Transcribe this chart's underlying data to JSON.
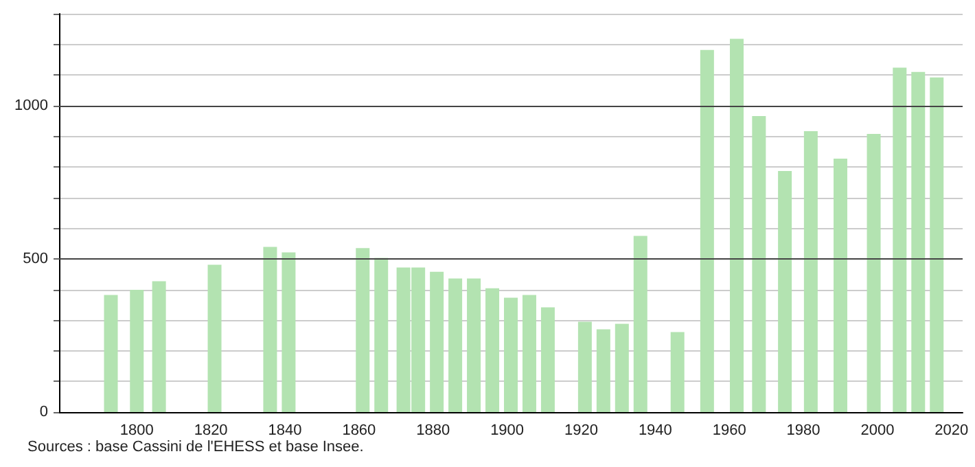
{
  "chart_data": {
    "type": "bar",
    "x": [
      1793,
      1800,
      1806,
      1821,
      1836,
      1841,
      1861,
      1866,
      1872,
      1876,
      1881,
      1886,
      1891,
      1896,
      1901,
      1906,
      1911,
      1921,
      1926,
      1931,
      1936,
      1946,
      1954,
      1962,
      1968,
      1975,
      1982,
      1990,
      1999,
      2006,
      2011,
      2016
    ],
    "values": [
      382,
      399,
      427,
      481,
      539,
      521,
      535,
      503,
      472,
      472,
      458,
      436,
      436,
      404,
      373,
      382,
      342,
      295,
      270,
      288,
      575,
      261,
      1182,
      1218,
      966,
      787,
      917,
      827,
      908,
      1124,
      1110,
      1092
    ],
    "color": "#b3e3b1",
    "xlim": [
      1779,
      2023
    ],
    "xticks": [
      1800,
      1820,
      1840,
      1860,
      1880,
      1900,
      1920,
      1940,
      1960,
      1980,
      2000,
      2020
    ],
    "ylim": [
      0,
      1300
    ],
    "yticks": [
      0,
      {
        "value": 100,
        "label": null
      },
      {
        "value": 200,
        "label": null
      },
      {
        "value": 300,
        "label": null
      },
      {
        "value": 400,
        "label": null
      },
      500,
      {
        "value": 600,
        "label": null
      },
      {
        "value": 700,
        "label": null
      },
      {
        "value": 800,
        "label": null
      },
      {
        "value": 900,
        "label": null
      },
      1000,
      {
        "value": 1100,
        "label": null
      },
      {
        "value": 1200,
        "label": null
      },
      {
        "value": 1300,
        "label": null
      }
    ],
    "grid": "y",
    "annotations": [
      "Sources : base Cassini de l'EHESS et base Insee."
    ]
  }
}
